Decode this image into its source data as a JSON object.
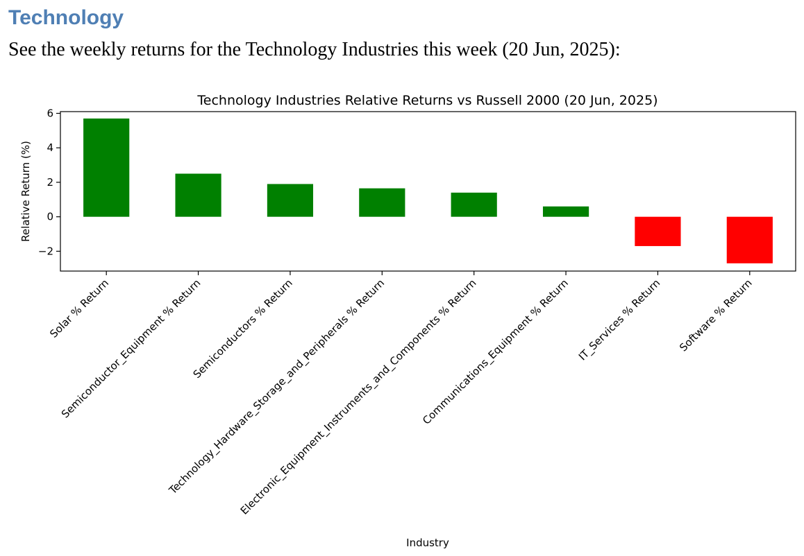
{
  "page": {
    "heading": "Technology",
    "intro": "See the weekly returns for the Technology Industries this week (20 Jun, 2025):"
  },
  "chart_data": {
    "type": "bar",
    "title": "Technology Industries Relative Returns vs Russell 2000 (20 Jun, 2025)",
    "xlabel": "Industry",
    "ylabel": "Relative Return (%)",
    "ylim": [
      -3.15,
      6.1
    ],
    "yticks": [
      6,
      4,
      2,
      0,
      -2
    ],
    "ytick_labels": [
      "6",
      "4",
      "2",
      "0",
      "−2"
    ],
    "grid": false,
    "legend": "none",
    "categories": [
      "Solar % Return",
      "Semiconductor_Equipment % Return",
      "Semiconductors % Return",
      "Technology_Hardware_Storage_and_Peripherals % Return",
      "Electronic_Equipment_Instruments_and_Components % Return",
      "Communications_Equipment % Return",
      "IT_Services % Return",
      "Software % Return"
    ],
    "values": [
      5.7,
      2.5,
      1.9,
      1.65,
      1.4,
      0.6,
      -1.7,
      -2.7
    ],
    "colors": {
      "positive": "#008000",
      "negative": "#ff0000"
    }
  }
}
